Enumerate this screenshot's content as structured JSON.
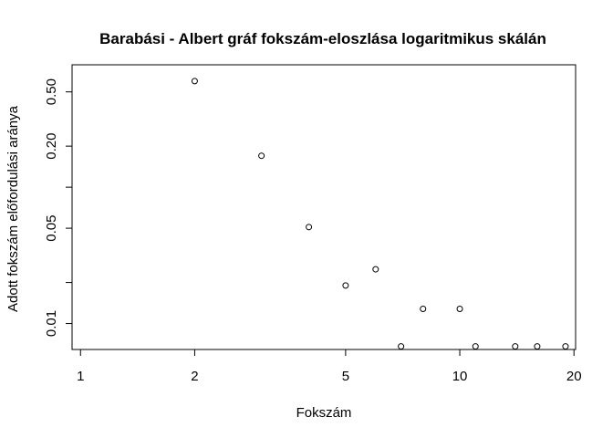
{
  "chart_data": {
    "type": "scatter",
    "title": "Barabási - Albert gráf fokszám-eloszlása logaritmikus skálán",
    "xlabel": "Fokszám",
    "ylabel": "Adott fokszám előfordulási aránya",
    "x_scale": "log",
    "y_scale": "log",
    "xlim": [
      0.95,
      20.2
    ],
    "ylim": [
      0.00645,
      0.79
    ],
    "x_ticks": [
      {
        "value": 1,
        "label": "1"
      },
      {
        "value": 2,
        "label": "2"
      },
      {
        "value": 5,
        "label": "5"
      },
      {
        "value": 10,
        "label": "10"
      },
      {
        "value": 20,
        "label": "20"
      }
    ],
    "y_ticks": [
      {
        "value": 0.01,
        "label": "0.01"
      },
      {
        "value": 0.02,
        "label": ""
      },
      {
        "value": 0.05,
        "label": "0.05"
      },
      {
        "value": 0.1,
        "label": ""
      },
      {
        "value": 0.2,
        "label": "0.20"
      },
      {
        "value": 0.5,
        "label": "0.50"
      }
    ],
    "points": [
      {
        "x": 2,
        "y": 0.6
      },
      {
        "x": 3,
        "y": 0.17
      },
      {
        "x": 4,
        "y": 0.051
      },
      {
        "x": 5,
        "y": 0.019
      },
      {
        "x": 6,
        "y": 0.025
      },
      {
        "x": 7,
        "y": 0.0068
      },
      {
        "x": 8,
        "y": 0.0128
      },
      {
        "x": 10,
        "y": 0.0128
      },
      {
        "x": 11,
        "y": 0.0068
      },
      {
        "x": 14,
        "y": 0.0068
      },
      {
        "x": 16,
        "y": 0.0068
      },
      {
        "x": 19,
        "y": 0.0068
      }
    ]
  }
}
